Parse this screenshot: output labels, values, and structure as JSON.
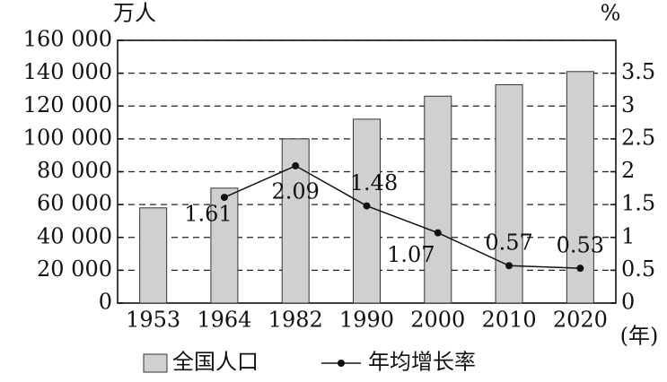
{
  "chart_data": {
    "type": "bar",
    "y_label": "万人",
    "y2_label": "%",
    "x_label": "(年)",
    "categories": [
      "1953",
      "1964",
      "1982",
      "1990",
      "2000",
      "2010",
      "2020"
    ],
    "series": [
      {
        "name": "全国人口",
        "type": "bar",
        "color": "#d0d0d0",
        "values": [
          58000,
          70000,
          100000,
          112000,
          126000,
          133000,
          141000
        ]
      },
      {
        "name": "年均增长率",
        "type": "line",
        "axis": "y2",
        "color": "#111111",
        "values": [
          null,
          1.61,
          2.09,
          1.48,
          1.07,
          0.57,
          0.53
        ]
      }
    ],
    "ylim": [
      0,
      160000
    ],
    "yticks": [
      0,
      {
        "value": 20000,
        "label": "20 000"
      },
      {
        "value": 40000,
        "label": "40 000"
      },
      {
        "value": 60000,
        "label": "60 000"
      },
      {
        "value": 80000,
        "label": "80 000"
      },
      {
        "value": 100000,
        "label": "100 000"
      },
      {
        "value": 120000,
        "label": "120 000"
      },
      {
        "value": 140000,
        "label": "140 000"
      },
      {
        "value": 160000,
        "label": "160 000"
      }
    ],
    "y2lim": [
      0,
      4
    ],
    "y2ticks": [
      0,
      0.5,
      1,
      1.5,
      2,
      2.5,
      3,
      3.5
    ],
    "grid": true,
    "legend": "bottom"
  }
}
